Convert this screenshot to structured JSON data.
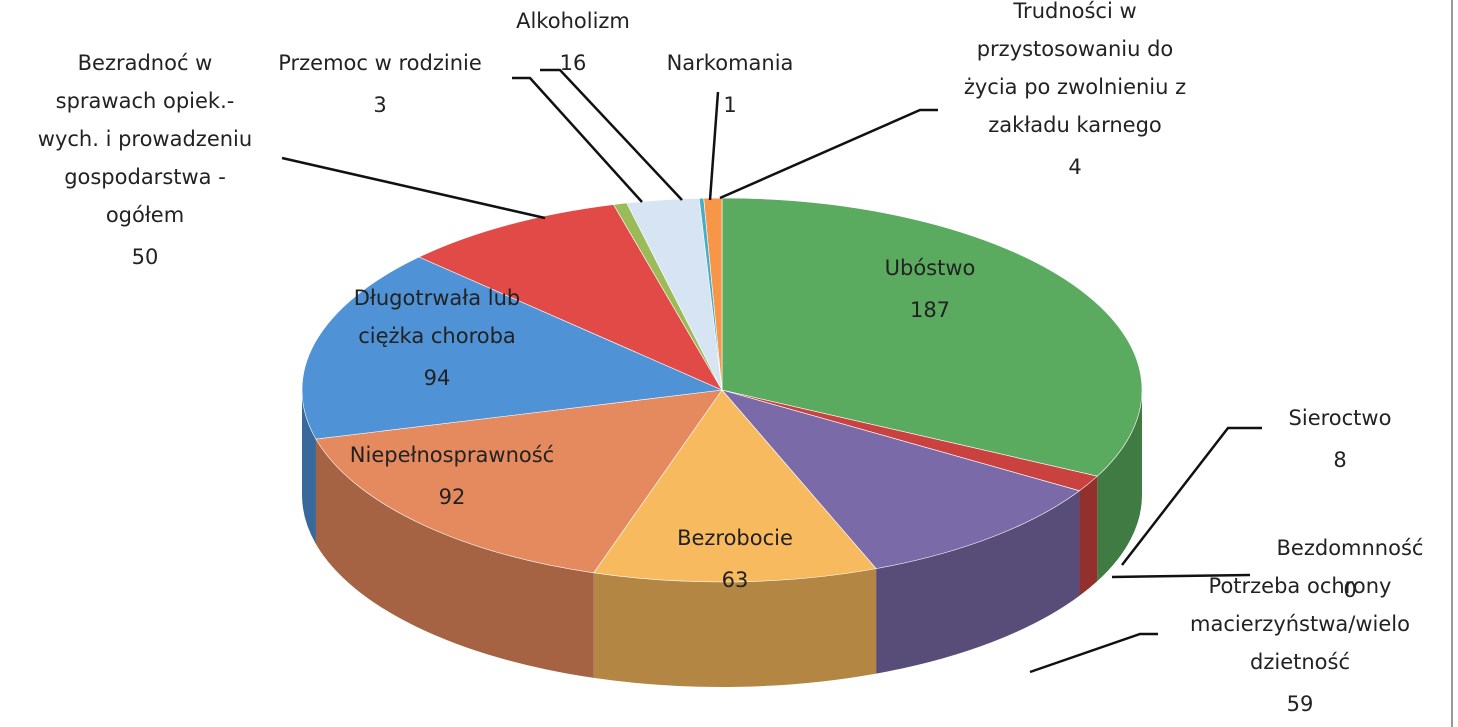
{
  "chart_data": {
    "type": "pie3d",
    "categories": [
      "Ubóstwo",
      "Sieroctwo",
      "Bezdomnność",
      "Potrzeba ochrony macierzyństwa/wielo dzietność",
      "Bezrobocie",
      "Niepełnosprawność",
      "Długotrwała lub ciężka choroba",
      "Bezradnoć w sprawach opiek.- wych. i prowadzeniu gospodarstwa - ogółem",
      "Przemoc w rodzinie",
      "Alkoholizm",
      "Narkomania",
      "Trudności w przystosowaniu do życia po zwolnieniu z zakładu karnego"
    ],
    "values": [
      187,
      8,
      0,
      59,
      63,
      92,
      94,
      50,
      3,
      16,
      1,
      4
    ],
    "colors": [
      "#5aab5f",
      "#c9423f",
      "#7f7f7f",
      "#7a6aa8",
      "#f8ba5e",
      "#e58a5f",
      "#4f92d6",
      "#e24a48",
      "#9bbb59",
      "#d6e4f4",
      "#4bacc6",
      "#f79646"
    ]
  }
}
